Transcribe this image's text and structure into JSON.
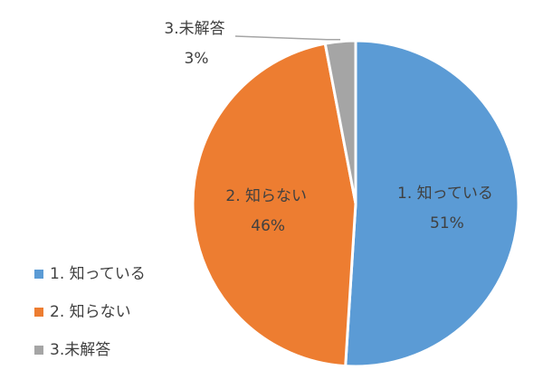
{
  "chart_data": {
    "type": "pie",
    "categories": [
      "1. 知っている",
      "2. 知らない",
      "3.未解答"
    ],
    "values": [
      51,
      46,
      3
    ],
    "value_labels": [
      "51%",
      "46%",
      "3%"
    ],
    "colors": [
      "#5b9bd5",
      "#ed7d31",
      "#a5a5a5"
    ],
    "legend": "bottom-left"
  }
}
